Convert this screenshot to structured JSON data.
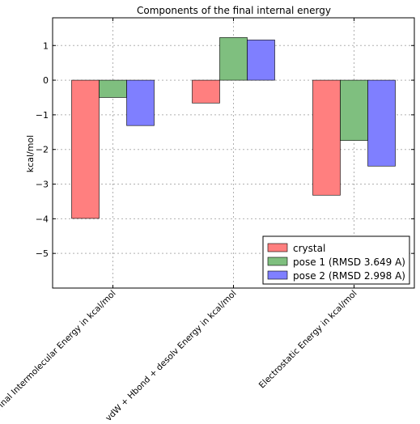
{
  "chart_data": {
    "type": "bar",
    "title": "Components of the final internal energy",
    "xlabel": "",
    "ylabel": "kcal/mol",
    "categories": [
      "Final Intermolecular Energy in kcal/mol",
      "vdW + Hbond + desolv Energy in kcal/mol",
      "Electrostatic Energy in kcal/mol"
    ],
    "series": [
      {
        "name": "crystal",
        "values": [
          -3.99,
          -0.66,
          -3.32
        ]
      },
      {
        "name": "pose 1 (RMSD 3.649 A)",
        "values": [
          -0.5,
          1.23,
          -1.74
        ]
      },
      {
        "name": "pose 2 (RMSD 2.998 A)",
        "values": [
          -1.31,
          1.16,
          -2.48
        ]
      }
    ],
    "colors": [
      "#ff7f7f",
      "#7fbf7f",
      "#7f7fff"
    ],
    "ylim": [
      -6,
      1.8
    ],
    "yticks": [
      1,
      0,
      -1,
      -2,
      -3,
      -4,
      -5
    ],
    "ytick_labels": [
      "1",
      "0",
      "−1",
      "−2",
      "−3",
      "−4",
      "−5"
    ],
    "grid": true,
    "legend_position": "lower-right"
  }
}
